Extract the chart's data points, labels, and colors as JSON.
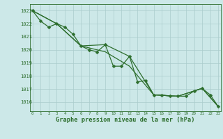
{
  "title": "Graphe pression niveau de la mer (hPa)",
  "background_color": "#cce8e8",
  "grid_color": "#aacccc",
  "line_color": "#2d6e2d",
  "xlim": [
    -0.3,
    23.3
  ],
  "ylim": [
    1015.3,
    1023.5
  ],
  "yticks": [
    1016,
    1017,
    1018,
    1019,
    1020,
    1021,
    1022,
    1023
  ],
  "xticks": [
    0,
    1,
    2,
    3,
    4,
    5,
    6,
    7,
    8,
    9,
    10,
    11,
    12,
    13,
    14,
    15,
    16,
    17,
    18,
    19,
    20,
    21,
    22,
    23
  ],
  "series": [
    {
      "x": [
        0,
        1,
        2,
        3,
        4,
        5,
        6,
        7,
        8,
        9,
        10,
        11,
        12,
        13,
        14,
        15,
        16,
        17,
        18,
        19,
        20,
        21,
        22,
        23
      ],
      "y": [
        1023.0,
        1022.2,
        1021.75,
        1022.0,
        1021.75,
        1021.2,
        1020.3,
        1020.0,
        1019.85,
        1020.4,
        1018.75,
        1018.75,
        1019.5,
        1017.55,
        1017.65,
        1016.55,
        1016.55,
        1016.45,
        1016.45,
        1016.45,
        1016.85,
        1017.05,
        1016.55,
        1015.65
      ],
      "marker": "D",
      "markersize": 2.5,
      "linewidth": 0.9
    },
    {
      "x": [
        0,
        3,
        6,
        9,
        12,
        15,
        18,
        21,
        23
      ],
      "y": [
        1023.0,
        1022.0,
        1020.3,
        1020.4,
        1019.5,
        1016.55,
        1016.45,
        1017.05,
        1015.65
      ],
      "marker": null,
      "markersize": 0,
      "linewidth": 0.9
    },
    {
      "x": [
        0,
        3,
        6,
        9,
        12,
        15,
        18,
        21,
        23
      ],
      "y": [
        1023.0,
        1022.0,
        1020.3,
        1019.85,
        1018.75,
        1016.55,
        1016.45,
        1017.05,
        1015.65
      ],
      "marker": null,
      "markersize": 0,
      "linewidth": 0.9
    }
  ]
}
